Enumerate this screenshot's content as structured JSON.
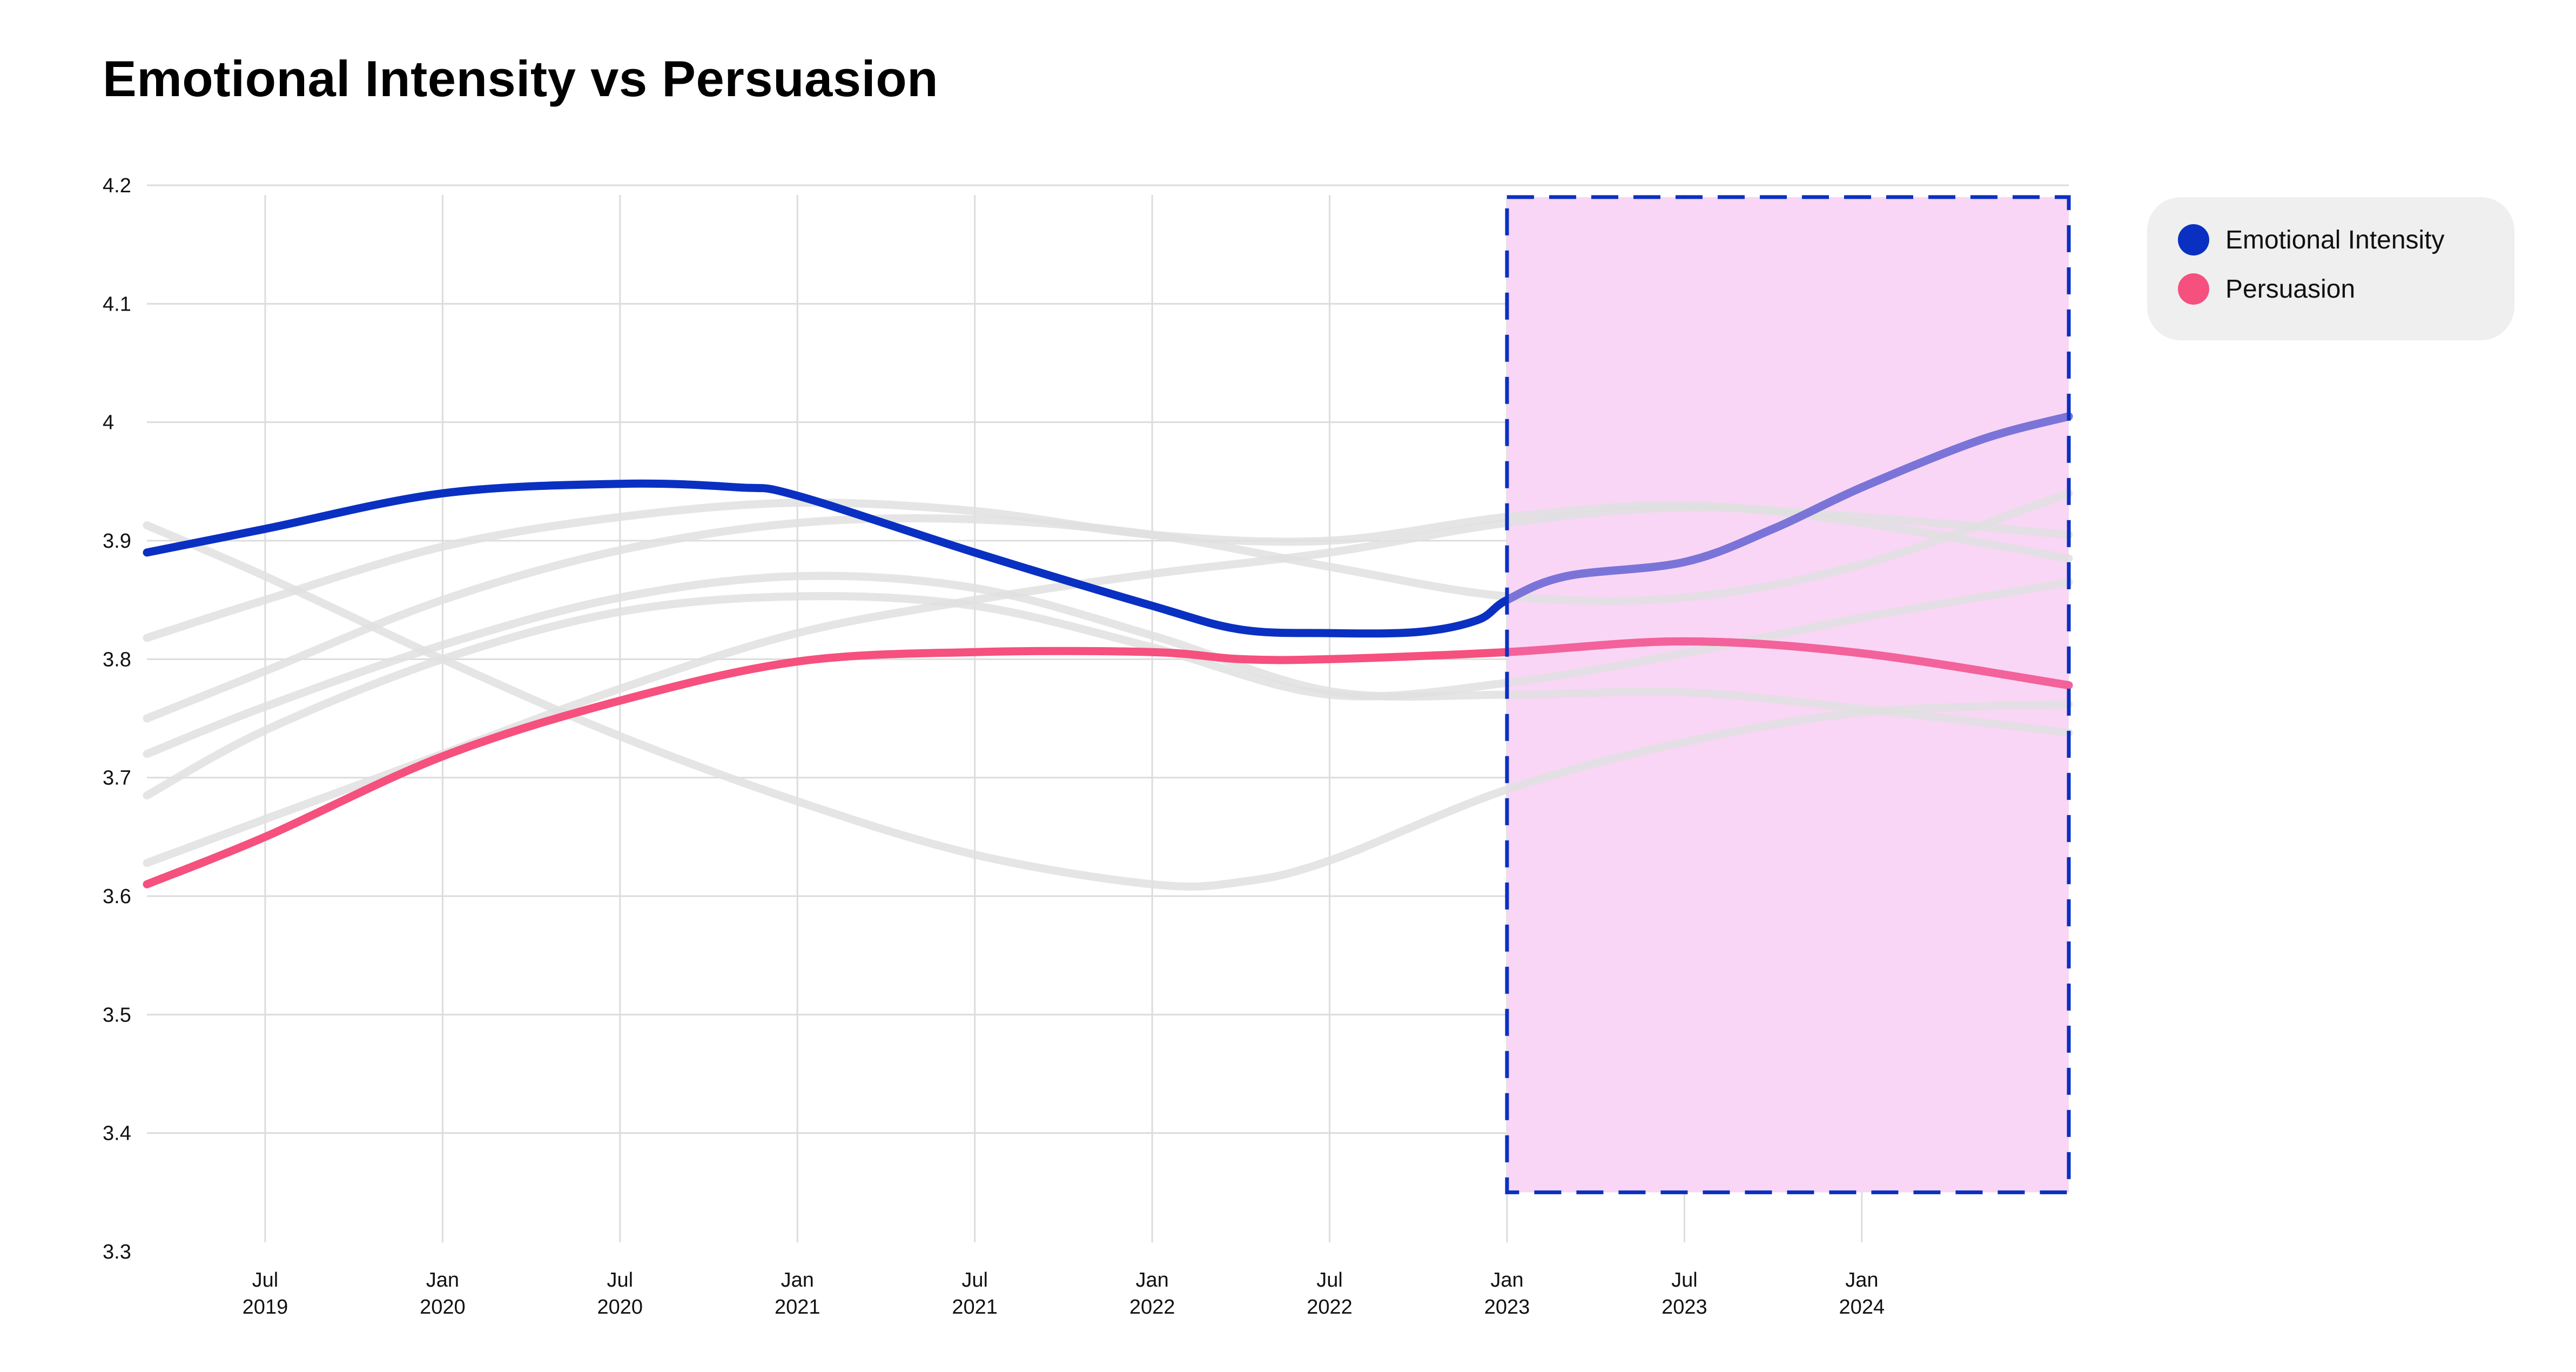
{
  "chart_data": {
    "type": "line",
    "title": "Emotional Intensity vs Persuasion",
    "xlabel": "",
    "ylabel": "",
    "ylim": [
      3.3,
      4.2
    ],
    "yticks": [
      "3.3",
      "3.4",
      "3.5",
      "3.6",
      "3.7",
      "3.8",
      "3.9",
      "4",
      "4.1",
      "4.2"
    ],
    "xlim": [
      "2019-03",
      "2024-08"
    ],
    "xticks": [
      {
        "date": "2019-07",
        "line1": "Jul",
        "line2": "2019"
      },
      {
        "date": "2020-01",
        "line1": "Jan",
        "line2": "2020"
      },
      {
        "date": "2020-07",
        "line1": "Jul",
        "line2": "2020"
      },
      {
        "date": "2021-01",
        "line1": "Jan",
        "line2": "2021"
      },
      {
        "date": "2021-07",
        "line1": "Jul",
        "line2": "2021"
      },
      {
        "date": "2022-01",
        "line1": "Jan",
        "line2": "2022"
      },
      {
        "date": "2022-07",
        "line1": "Jul",
        "line2": "2022"
      },
      {
        "date": "2023-01",
        "line1": "Jan",
        "line2": "2023"
      },
      {
        "date": "2023-07",
        "line1": "Jul",
        "line2": "2023"
      },
      {
        "date": "2024-01",
        "line1": "Jan",
        "line2": "2024"
      }
    ],
    "grid": true,
    "legend_position": "top-right",
    "highlight_region": {
      "x": [
        "2023-01",
        "2024-08"
      ],
      "y": [
        3.35,
        4.19
      ],
      "fill": "#f9d6f5",
      "border": "#0a30c2"
    },
    "series": [
      {
        "name": "Emotional Intensity",
        "color": "#0a30c2",
        "highlight_color": "#7b74d8",
        "points": [
          [
            "2019-03",
            3.89
          ],
          [
            "2019-07",
            3.91
          ],
          [
            "2020-01",
            3.94
          ],
          [
            "2020-07",
            3.948
          ],
          [
            "2020-11",
            3.945
          ],
          [
            "2021-01",
            3.938
          ],
          [
            "2021-07",
            3.89
          ],
          [
            "2022-01",
            3.845
          ],
          [
            "2022-04",
            3.825
          ],
          [
            "2022-07",
            3.822
          ],
          [
            "2022-10",
            3.823
          ],
          [
            "2022-12",
            3.833
          ],
          [
            "2023-01",
            3.85
          ],
          [
            "2023-03",
            3.87
          ],
          [
            "2023-07",
            3.882
          ],
          [
            "2023-10",
            3.91
          ],
          [
            "2024-01",
            3.945
          ],
          [
            "2024-05",
            3.985
          ],
          [
            "2024-08",
            4.005
          ]
        ]
      },
      {
        "name": "Persuasion",
        "color": "#f5507e",
        "highlight_color": "#f3629a",
        "points": [
          [
            "2019-03",
            3.61
          ],
          [
            "2019-07",
            3.65
          ],
          [
            "2020-01",
            3.718
          ],
          [
            "2020-07",
            3.765
          ],
          [
            "2021-01",
            3.798
          ],
          [
            "2021-07",
            3.806
          ],
          [
            "2022-01",
            3.806
          ],
          [
            "2022-04",
            3.8
          ],
          [
            "2022-07",
            3.8
          ],
          [
            "2023-01",
            3.806
          ],
          [
            "2023-07",
            3.815
          ],
          [
            "2024-01",
            3.805
          ],
          [
            "2024-08",
            3.778
          ]
        ]
      },
      {
        "name": "",
        "color": "#e0e0e0",
        "points": [
          [
            "2019-03",
            3.913
          ],
          [
            "2019-07",
            3.87
          ],
          [
            "2020-01",
            3.8
          ],
          [
            "2020-07",
            3.735
          ],
          [
            "2021-01",
            3.68
          ],
          [
            "2021-07",
            3.635
          ],
          [
            "2022-01",
            3.61
          ],
          [
            "2022-04",
            3.612
          ],
          [
            "2022-07",
            3.63
          ],
          [
            "2023-01",
            3.69
          ],
          [
            "2023-07",
            3.73
          ],
          [
            "2024-01",
            3.755
          ],
          [
            "2024-08",
            3.762
          ]
        ]
      },
      {
        "name": "",
        "color": "#e0e0e0",
        "points": [
          [
            "2019-03",
            3.818
          ],
          [
            "2019-07",
            3.85
          ],
          [
            "2020-01",
            3.895
          ],
          [
            "2020-07",
            3.92
          ],
          [
            "2021-01",
            3.932
          ],
          [
            "2021-07",
            3.925
          ],
          [
            "2022-01",
            3.905
          ],
          [
            "2022-07",
            3.9
          ],
          [
            "2023-01",
            3.92
          ],
          [
            "2023-07",
            3.93
          ],
          [
            "2024-01",
            3.915
          ],
          [
            "2024-08",
            3.885
          ]
        ]
      },
      {
        "name": "",
        "color": "#e0e0e0",
        "points": [
          [
            "2019-03",
            3.75
          ],
          [
            "2019-07",
            3.79
          ],
          [
            "2020-01",
            3.85
          ],
          [
            "2020-07",
            3.892
          ],
          [
            "2021-01",
            3.915
          ],
          [
            "2021-07",
            3.918
          ],
          [
            "2022-01",
            3.905
          ],
          [
            "2022-07",
            3.878
          ],
          [
            "2023-01",
            3.853
          ],
          [
            "2023-07",
            3.852
          ],
          [
            "2024-01",
            3.88
          ],
          [
            "2024-08",
            3.94
          ]
        ]
      },
      {
        "name": "",
        "color": "#e0e0e0",
        "points": [
          [
            "2019-03",
            3.72
          ],
          [
            "2019-07",
            3.76
          ],
          [
            "2020-01",
            3.812
          ],
          [
            "2020-07",
            3.852
          ],
          [
            "2021-01",
            3.87
          ],
          [
            "2021-07",
            3.86
          ],
          [
            "2022-01",
            3.82
          ],
          [
            "2022-07",
            3.773
          ],
          [
            "2023-01",
            3.77
          ],
          [
            "2023-07",
            3.772
          ],
          [
            "2024-01",
            3.758
          ],
          [
            "2024-08",
            3.738
          ]
        ]
      },
      {
        "name": "",
        "color": "#e0e0e0",
        "points": [
          [
            "2019-03",
            3.685
          ],
          [
            "2019-07",
            3.74
          ],
          [
            "2020-01",
            3.8
          ],
          [
            "2020-07",
            3.84
          ],
          [
            "2021-01",
            3.853
          ],
          [
            "2021-07",
            3.845
          ],
          [
            "2022-01",
            3.81
          ],
          [
            "2022-07",
            3.77
          ],
          [
            "2023-01",
            3.78
          ],
          [
            "2023-07",
            3.805
          ],
          [
            "2024-01",
            3.835
          ],
          [
            "2024-08",
            3.865
          ]
        ]
      },
      {
        "name": "",
        "color": "#e0e0e0",
        "points": [
          [
            "2019-03",
            3.628
          ],
          [
            "2019-07",
            3.665
          ],
          [
            "2020-01",
            3.72
          ],
          [
            "2020-07",
            3.775
          ],
          [
            "2021-01",
            3.822
          ],
          [
            "2021-07",
            3.85
          ],
          [
            "2022-01",
            3.872
          ],
          [
            "2022-07",
            3.89
          ],
          [
            "2023-01",
            3.915
          ],
          [
            "2023-07",
            3.928
          ],
          [
            "2024-01",
            3.92
          ],
          [
            "2024-08",
            3.905
          ]
        ]
      }
    ]
  },
  "legend": {
    "items": [
      {
        "label": "Emotional Intensity",
        "color": "#0a30c2"
      },
      {
        "label": "Persuasion",
        "color": "#f5507e"
      }
    ]
  }
}
